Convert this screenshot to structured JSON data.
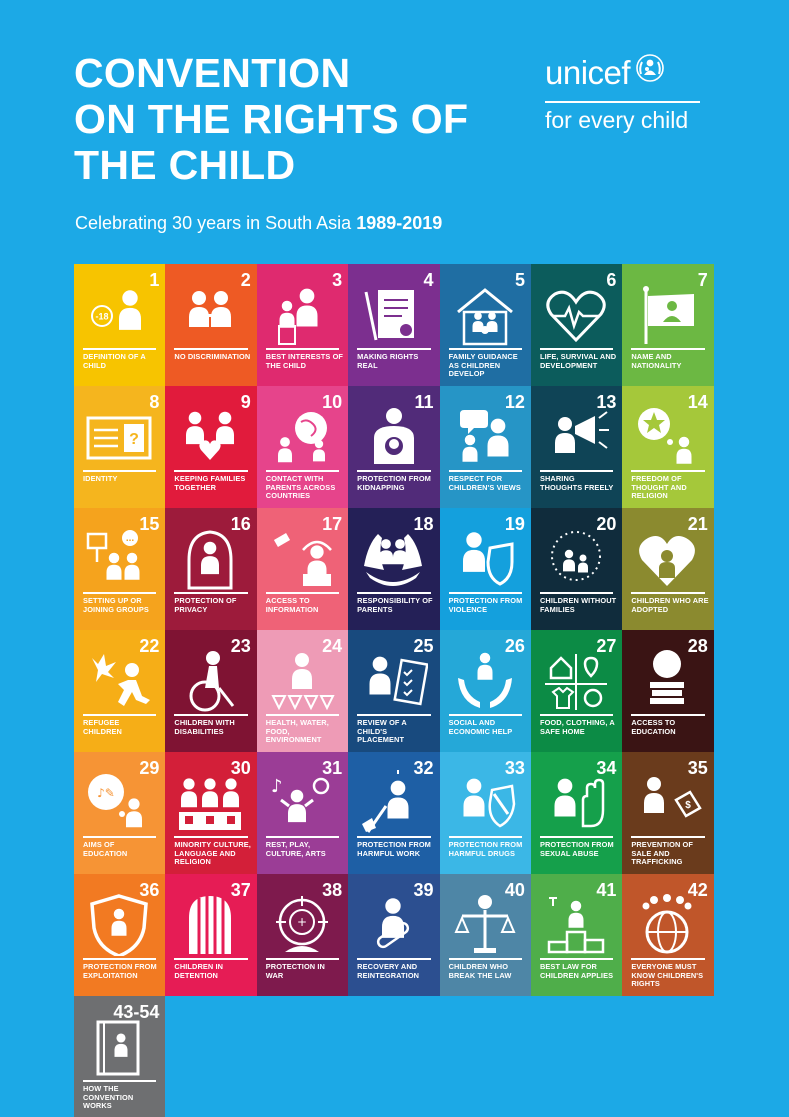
{
  "header": {
    "title_line1": "CONVENTION",
    "title_line2": "ON THE RIGHTS OF",
    "title_line3": "THE CHILD",
    "subtitle_text": "Celebrating 30 years in South Asia",
    "subtitle_years": "1989-2019"
  },
  "logo": {
    "wordmark": "unicef",
    "tagline": "for every child",
    "emblem_icon": "unicef-emblem-icon"
  },
  "articles": [
    {
      "num": "1",
      "label": "Definition of a child",
      "color": "#f7c400",
      "icon": "child-under-18-icon"
    },
    {
      "num": "2",
      "label": "No discrimination",
      "color": "#ee5a24",
      "icon": "two-children-icon"
    },
    {
      "num": "3",
      "label": "Best interests of the child",
      "color": "#df2a6f",
      "icon": "adult-child-podium-icon"
    },
    {
      "num": "4",
      "label": "Making rights real",
      "color": "#7c2f8f",
      "icon": "document-pen-icon"
    },
    {
      "num": "5",
      "label": "Family guidance as children develop",
      "color": "#1f6ea3",
      "icon": "family-house-icon"
    },
    {
      "num": "6",
      "label": "Life, survival and development",
      "color": "#0c5c5c",
      "icon": "heartbeat-icon"
    },
    {
      "num": "7",
      "label": "Name and nationality",
      "color": "#6cb843",
      "icon": "flag-icon"
    },
    {
      "num": "8",
      "label": "Identity",
      "color": "#f5b51e",
      "icon": "id-card-icon"
    },
    {
      "num": "9",
      "label": "Keeping families together",
      "color": "#e11b3c",
      "icon": "family-heart-icon"
    },
    {
      "num": "10",
      "label": "Contact with parents across countries",
      "color": "#e6448b",
      "icon": "globe-family-icon"
    },
    {
      "num": "11",
      "label": "Protection from kidnapping",
      "color": "#512b79",
      "icon": "held-child-icon"
    },
    {
      "num": "12",
      "label": "Respect for children's views",
      "color": "#2695c6",
      "icon": "speech-bubble-icon"
    },
    {
      "num": "13",
      "label": "Sharing thoughts freely",
      "color": "#0f4456",
      "icon": "megaphone-icon"
    },
    {
      "num": "14",
      "label": "Freedom of thought and religion",
      "color": "#a5c83a",
      "icon": "thought-bubble-icon"
    },
    {
      "num": "15",
      "label": "Setting up or joining groups",
      "color": "#f5a31d",
      "icon": "group-sign-icon"
    },
    {
      "num": "16",
      "label": "Protection of privacy",
      "color": "#9d1b3b",
      "icon": "privacy-icon"
    },
    {
      "num": "17",
      "label": "Access to information",
      "color": "#ef6277",
      "icon": "satellite-reading-icon"
    },
    {
      "num": "18",
      "label": "Responsibility of parents",
      "color": "#242057",
      "icon": "parent-hands-icon"
    },
    {
      "num": "19",
      "label": "Protection from violence",
      "color": "#14a0dd",
      "icon": "shield-child-icon"
    },
    {
      "num": "20",
      "label": "Children without families",
      "color": "#102c3c",
      "icon": "dotted-children-icon"
    },
    {
      "num": "21",
      "label": "Children who are adopted",
      "color": "#8b8a2f",
      "icon": "heart-child-icon"
    },
    {
      "num": "22",
      "label": "Refugee children",
      "color": "#f6ae17",
      "icon": "running-child-icon"
    },
    {
      "num": "23",
      "label": "Children with disabilities",
      "color": "#7f1333",
      "icon": "wheelchair-icon"
    },
    {
      "num": "24",
      "label": "Health, water, food, environment",
      "color": "#ee9bb6",
      "icon": "health-checks-icon"
    },
    {
      "num": "25",
      "label": "Review of a child's placement",
      "color": "#184a7e",
      "icon": "checklist-icon"
    },
    {
      "num": "26",
      "label": "Social and economic help",
      "color": "#25a8d8",
      "icon": "hands-child-icon"
    },
    {
      "num": "27",
      "label": "Food, clothing, a safe home",
      "color": "#0c8b45",
      "icon": "house-shirt-icon"
    },
    {
      "num": "28",
      "label": "Access to education",
      "color": "#3a1414",
      "icon": "books-icon"
    },
    {
      "num": "29",
      "label": "Aims of education",
      "color": "#f69435",
      "icon": "learning-bubble-icon"
    },
    {
      "num": "30",
      "label": "Minority culture, language and religion",
      "color": "#d31f39",
      "icon": "three-children-icon"
    },
    {
      "num": "31",
      "label": "Rest, play, culture, arts",
      "color": "#9b3d96",
      "icon": "music-play-icon"
    },
    {
      "num": "32",
      "label": "Protection from harmful work",
      "color": "#1e5fa5",
      "icon": "shovel-icon"
    },
    {
      "num": "33",
      "label": "Protection from harmful drugs",
      "color": "#3bb7e6",
      "icon": "drug-shield-icon"
    },
    {
      "num": "34",
      "label": "Protection from sexual abuse",
      "color": "#15a04b",
      "icon": "stop-hand-icon"
    },
    {
      "num": "35",
      "label": "Prevention of sale and trafficking",
      "color": "#6a3b1c",
      "icon": "price-tag-icon"
    },
    {
      "num": "36",
      "label": "Protection from exploitation",
      "color": "#f27a22",
      "icon": "shield-outline-icon"
    },
    {
      "num": "37",
      "label": "Children in detention",
      "color": "#e61c55",
      "icon": "bars-child-icon"
    },
    {
      "num": "38",
      "label": "Protection in war",
      "color": "#7e1a4d",
      "icon": "target-icon"
    },
    {
      "num": "39",
      "label": "Recovery and reintegration",
      "color": "#2c4f90",
      "icon": "bandage-icon"
    },
    {
      "num": "40",
      "label": "Children who break the law",
      "color": "#4e86a6",
      "icon": "scales-icon"
    },
    {
      "num": "41",
      "label": "Best law for children applies",
      "color": "#4fae4a",
      "icon": "podium-winner-icon"
    },
    {
      "num": "42",
      "label": "Everyone must know children's rights",
      "color": "#c0562a",
      "icon": "crowd-globe-icon"
    },
    {
      "num": "43-54",
      "label": "How the convention works",
      "color": "#6e6f71",
      "icon": "book-child-icon"
    }
  ]
}
